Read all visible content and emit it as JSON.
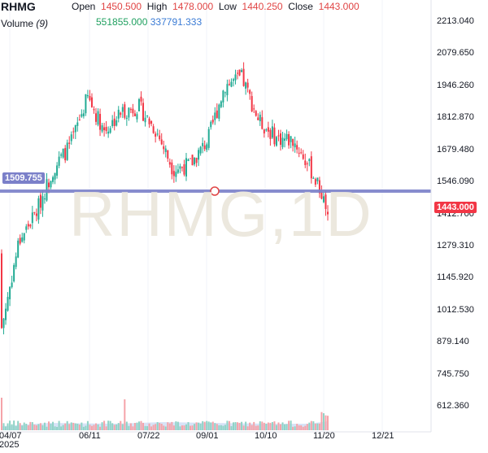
{
  "header": {
    "symbol": "RHMG",
    "open_label": "Open",
    "open_value": "1450.500",
    "high_label": "High",
    "high_value": "1478.000",
    "low_label": "Low",
    "low_value": "1440.250",
    "close_label": "Close",
    "close_value": "1443.000",
    "volume_label": "Volume",
    "volume_period": "(9)",
    "volume_value": "551855.000",
    "volume_ma_value": "337791.333"
  },
  "watermark": "RHMG,1D",
  "price_tag": "1443.000",
  "level_tag": "1509.755",
  "colors": {
    "up": "#22ab94",
    "down": "#f23645",
    "level_line": "#7b80c9",
    "tag_red": "#f23645",
    "tag_level": "#7b80c9"
  },
  "chart_data": {
    "type": "candlestick",
    "title": "RHMG, 1D",
    "y_ticks": [
      "2213.040",
      "2079.650",
      "1946.260",
      "1812.870",
      "1679.480",
      "1546.090",
      "1412.700",
      "1279.310",
      "1145.920",
      "1012.530",
      "879.140",
      "745.750",
      "612.360"
    ],
    "x_ticks": [
      "04/07\n2025",
      "06/11",
      "07/22",
      "09/01",
      "10/10",
      "11/20",
      "12/21"
    ],
    "ylim": [
      530,
      2240
    ],
    "horizontal_level": 1509.755,
    "last_close": 1443.0,
    "approx_path": [
      {
        "date": "04/07",
        "close": 940
      },
      {
        "date": "04/10",
        "close": 1300
      },
      {
        "date": "04/20",
        "close": 1420
      },
      {
        "date": "05/01",
        "close": 1600
      },
      {
        "date": "05/15",
        "close": 1700
      },
      {
        "date": "06/01",
        "close": 1900
      },
      {
        "date": "06/11",
        "close": 1760
      },
      {
        "date": "06/25",
        "close": 1840
      },
      {
        "date": "07/10",
        "close": 1860
      },
      {
        "date": "07/22",
        "close": 1760
      },
      {
        "date": "08/05",
        "close": 1600
      },
      {
        "date": "08/15",
        "close": 1620
      },
      {
        "date": "09/01",
        "close": 1720
      },
      {
        "date": "09/15",
        "close": 1950
      },
      {
        "date": "09/30",
        "close": 1980
      },
      {
        "date": "10/10",
        "close": 1800
      },
      {
        "date": "10/25",
        "close": 1730
      },
      {
        "date": "11/10",
        "close": 1720
      },
      {
        "date": "11/18",
        "close": 1600
      },
      {
        "date": "11/20",
        "close": 1443
      }
    ]
  }
}
